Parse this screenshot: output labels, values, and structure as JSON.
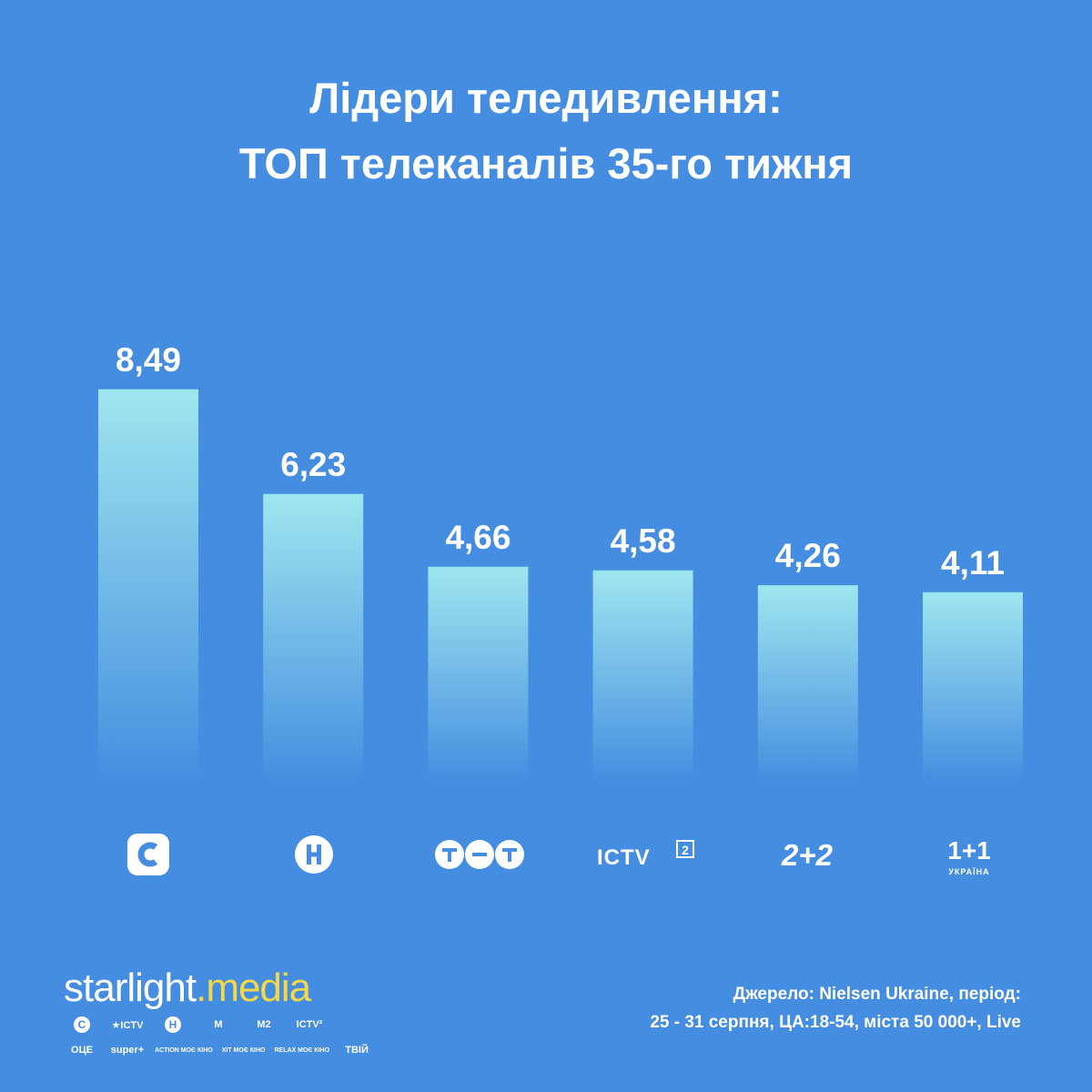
{
  "title": {
    "line1": "Лідери теледивлення:",
    "line2": "ТОП телеканалів 35-го тижня"
  },
  "colors": {
    "background": "#448DE0",
    "bar_top": "#9EE6EE",
    "bar_bottom": "#448DE0",
    "text": "#FFFFFF",
    "brand_accent": "#F4D848"
  },
  "chart_data": {
    "type": "bar",
    "categories": [
      "СТБ",
      "Новий канал",
      "ТЕТ",
      "ICTV2",
      "2+2",
      "1+1 Україна"
    ],
    "values": [
      8.49,
      6.23,
      4.66,
      4.58,
      4.26,
      4.11
    ],
    "value_labels": [
      "8,49",
      "6,23",
      "4,66",
      "4,58",
      "4,26",
      "4,11"
    ],
    "title": "",
    "xlabel": "",
    "ylabel": "",
    "ylim": [
      0,
      11
    ],
    "grid": false,
    "legend": "none"
  },
  "logos": [
    {
      "icon": "stb-logo-icon"
    },
    {
      "icon": "novyi-kanal-logo-icon"
    },
    {
      "icon": "tet-logo-icon"
    },
    {
      "icon": "ictv2-logo-icon",
      "text": "ICTV",
      "superscript": "2"
    },
    {
      "icon": "2plus2-logo-icon",
      "text": "2+2"
    },
    {
      "icon": "1plus1-ukraina-logo-icon",
      "text": "1+1",
      "subtext": "УКРАЇНА"
    }
  ],
  "brand": {
    "part1": "starlight",
    "dot": ".",
    "part2": "media",
    "channels_row1": [
      "С",
      "★ICTV",
      "Н",
      "M",
      "M2",
      "ICTV²"
    ],
    "channels_row2": [
      "ОЦЕ",
      "super+",
      "ACTION МОЄ КІНО",
      "ХІТ МОЄ КІНО",
      "RELAX МОЄ КІНО",
      "ТВІЙ"
    ]
  },
  "source": {
    "line1": "Джерело: Nielsen Ukraine, період:",
    "line2": "25 - 31 серпня, ЦА:18-54, міста 50 000+, Live"
  }
}
